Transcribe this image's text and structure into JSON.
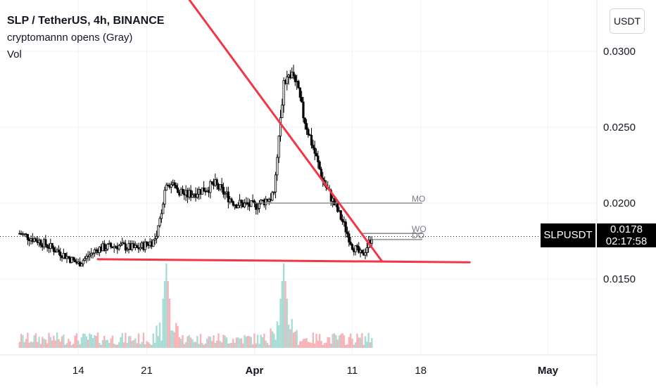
{
  "header": {
    "title": "SLP / TetherUS, 4h, BINANCE",
    "indicator_1": "cryptomannn opens (Gray)",
    "indicator_2": "Vol",
    "unit_button": "USDT"
  },
  "price_axis": {
    "ticks": [
      "0.0300",
      "0.0250",
      "0.0200",
      "0.0150"
    ],
    "current_price": "0.0178",
    "countdown": "02:17:58",
    "symbol_tag": "SLPUSDT"
  },
  "chart_data": {
    "type": "candlestick",
    "symbol": "SLP / TetherUS",
    "interval": "4h",
    "exchange": "BINANCE",
    "ylim": [
      0.01,
      0.034
    ],
    "x_tick_labels": [
      "14",
      "21",
      "Apr",
      "11",
      "18",
      "May"
    ],
    "last_price": 0.0178,
    "price_path": [
      {
        "date": "2021-03-08",
        "price": 0.018
      },
      {
        "date": "2021-03-10",
        "price": 0.0175
      },
      {
        "date": "2021-03-12",
        "price": 0.0168
      },
      {
        "date": "2021-03-14",
        "price": 0.016
      },
      {
        "date": "2021-03-16",
        "price": 0.017
      },
      {
        "date": "2021-03-18",
        "price": 0.0172
      },
      {
        "date": "2021-03-20",
        "price": 0.017
      },
      {
        "date": "2021-03-22",
        "price": 0.0176
      },
      {
        "date": "2021-03-23",
        "price": 0.0215
      },
      {
        "date": "2021-03-25",
        "price": 0.0205
      },
      {
        "date": "2021-03-28",
        "price": 0.0212
      },
      {
        "date": "2021-03-30",
        "price": 0.02
      },
      {
        "date": "2021-04-01",
        "price": 0.0198
      },
      {
        "date": "2021-04-03",
        "price": 0.0205
      },
      {
        "date": "2021-04-04",
        "price": 0.028
      },
      {
        "date": "2021-04-05",
        "price": 0.0285
      },
      {
        "date": "2021-04-06",
        "price": 0.0258
      },
      {
        "date": "2021-04-08",
        "price": 0.0215
      },
      {
        "date": "2021-04-10",
        "price": 0.0188
      },
      {
        "date": "2021-04-11",
        "price": 0.0172
      },
      {
        "date": "2021-04-12",
        "price": 0.0165
      },
      {
        "date": "2021-04-13",
        "price": 0.0178
      }
    ],
    "horizontal_levels": [
      {
        "label": "MO",
        "price": 0.02
      },
      {
        "label": "WO",
        "price": 0.018
      },
      {
        "label": "DO",
        "price": 0.0176
      }
    ],
    "trendlines": [
      {
        "name": "descending resistance",
        "color": "#f23645",
        "from": {
          "date": "2021-03-25",
          "price": 0.0337
        },
        "to": {
          "date": "2021-04-14",
          "price": 0.0162
        }
      },
      {
        "name": "horizontal support",
        "color": "#f23645",
        "from": {
          "date": "2021-03-16",
          "price": 0.0163
        },
        "to": {
          "date": "2021-04-23",
          "price": 0.0161
        }
      }
    ],
    "volume": {
      "colors": {
        "up": "#a8ddd6",
        "down": "#f7b4b8"
      },
      "spike_dates": [
        "2021-03-23",
        "2021-04-04"
      ]
    },
    "colors": {
      "up": "#000000",
      "down": "#000000",
      "grid": "#f0f3fa"
    },
    "grid": true
  }
}
